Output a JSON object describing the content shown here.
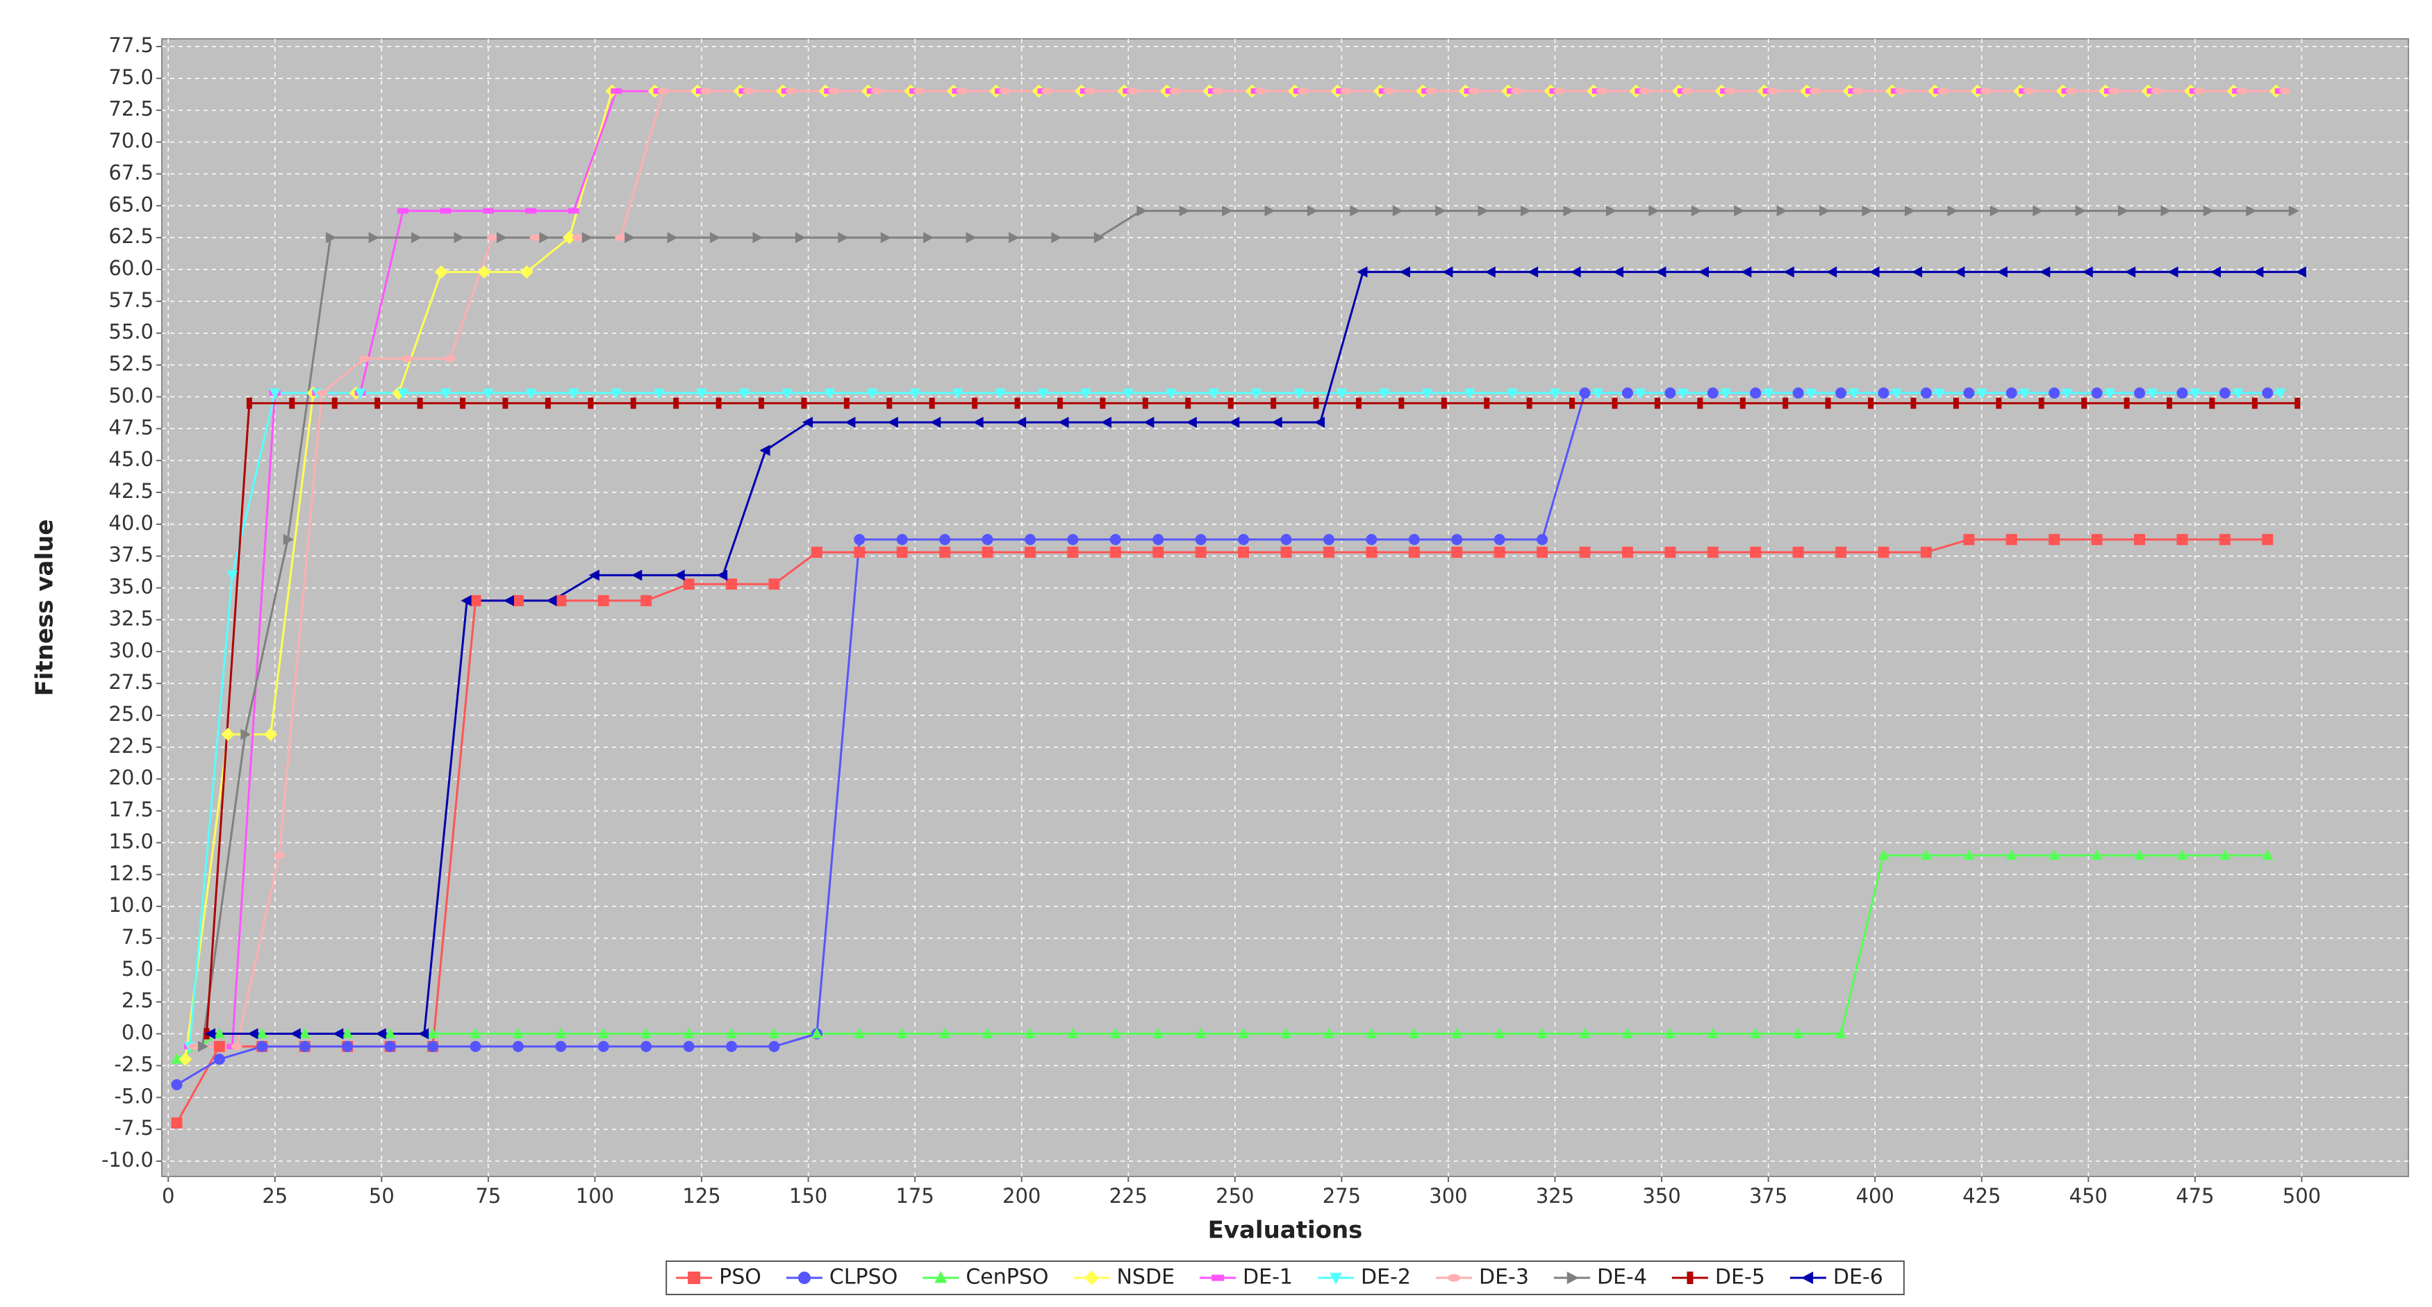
{
  "chart_data": {
    "type": "line",
    "x_label": "Evaluations",
    "y_label": "Fitness value",
    "xlim": [
      -1.5,
      525
    ],
    "ylim": [
      -11.2,
      78.1
    ],
    "xticks": [
      0,
      25,
      50,
      75,
      100,
      125,
      150,
      175,
      200,
      225,
      250,
      275,
      300,
      325,
      350,
      375,
      400,
      425,
      450,
      475,
      500
    ],
    "yticks": [
      {
        "value": -10,
        "label": "-10.0"
      },
      -7.5,
      {
        "value": -5,
        "label": "-5.0"
      },
      -2.5,
      {
        "value": 0,
        "label": "0.0"
      },
      2.5,
      {
        "value": 5,
        "label": "5.0"
      },
      7.5,
      {
        "value": 10,
        "label": "10.0"
      },
      12.5,
      {
        "value": 15,
        "label": "15.0"
      },
      17.5,
      {
        "value": 20,
        "label": "20.0"
      },
      22.5,
      {
        "value": 25,
        "label": "25.0"
      },
      27.5,
      {
        "value": 30,
        "label": "30.0"
      },
      32.5,
      {
        "value": 35,
        "label": "35.0"
      },
      37.5,
      {
        "value": 40,
        "label": "40.0"
      },
      42.5,
      {
        "value": 45,
        "label": "45.0"
      },
      47.5,
      {
        "value": 50,
        "label": "50.0"
      },
      52.5,
      {
        "value": 55,
        "label": "55.0"
      },
      57.5,
      {
        "value": 60,
        "label": "60.0"
      },
      62.5,
      {
        "value": 65,
        "label": "65.0"
      },
      67.5,
      {
        "value": 70,
        "label": "70.0"
      },
      72.5,
      {
        "value": 75,
        "label": "75.0"
      },
      77.5
    ],
    "grid": true,
    "legend": "bottom",
    "series": [
      {
        "name": "PSO",
        "color": "#ff5555",
        "x": [
          2,
          12,
          22,
          32,
          42,
          52,
          62,
          72,
          82,
          92,
          102,
          112,
          122,
          132,
          142,
          152,
          162,
          172,
          182,
          192,
          202,
          212,
          222,
          232,
          242,
          252,
          262,
          272,
          282,
          292,
          302,
          312,
          322,
          332,
          342,
          352,
          362,
          372,
          382,
          392,
          402,
          412,
          422,
          432,
          442,
          452,
          462,
          472,
          482,
          492
        ],
        "values": [
          -7,
          -1,
          -1,
          -1,
          -1,
          -1,
          -1,
          34,
          34,
          34,
          34,
          34,
          35.3,
          35.3,
          35.3,
          37.8,
          37.8,
          37.8,
          37.8,
          37.8,
          37.8,
          37.8,
          37.8,
          37.8,
          37.8,
          37.8,
          37.8,
          37.8,
          37.8,
          37.8,
          37.8,
          37.8,
          37.8,
          37.8,
          37.8,
          37.8,
          37.8,
          37.8,
          37.8,
          37.8,
          37.8,
          37.8,
          38.8,
          38.8,
          38.8,
          38.8,
          38.8,
          38.8,
          38.8,
          38.8
        ]
      },
      {
        "name": "CLPSO",
        "color": "#5555ff",
        "x": [
          2,
          12,
          22,
          32,
          42,
          52,
          62,
          72,
          82,
          92,
          102,
          112,
          122,
          132,
          142,
          152,
          162,
          172,
          182,
          192,
          202,
          212,
          222,
          232,
          242,
          252,
          262,
          272,
          282,
          292,
          302,
          312,
          322,
          332,
          342,
          352,
          362,
          372,
          382,
          392,
          402,
          412,
          422,
          432,
          442,
          452,
          462,
          472,
          482,
          492
        ],
        "values": [
          -4,
          -2,
          -1,
          -1,
          -1,
          -1,
          -1,
          -1,
          -1,
          -1,
          -1,
          -1,
          -1,
          -1,
          -1,
          0,
          38.8,
          38.8,
          38.8,
          38.8,
          38.8,
          38.8,
          38.8,
          38.8,
          38.8,
          38.8,
          38.8,
          38.8,
          38.8,
          38.8,
          38.8,
          38.8,
          38.8,
          50.3,
          50.3,
          50.3,
          50.3,
          50.3,
          50.3,
          50.3,
          50.3,
          50.3,
          50.3,
          50.3,
          50.3,
          50.3,
          50.3,
          50.3,
          50.3,
          50.3
        ]
      },
      {
        "name": "CenPSO",
        "color": "#55ff55",
        "x": [
          2,
          12,
          22,
          32,
          42,
          52,
          62,
          72,
          82,
          92,
          102,
          112,
          122,
          132,
          142,
          152,
          162,
          172,
          182,
          192,
          202,
          212,
          222,
          232,
          242,
          252,
          262,
          272,
          282,
          292,
          302,
          312,
          322,
          332,
          342,
          352,
          362,
          372,
          382,
          392,
          402,
          412,
          422,
          432,
          442,
          452,
          462,
          472,
          482,
          492
        ],
        "values": [
          -2,
          0,
          0,
          0,
          0,
          0,
          0,
          0,
          0,
          0,
          0,
          0,
          0,
          0,
          0,
          0,
          0,
          0,
          0,
          0,
          0,
          0,
          0,
          0,
          0,
          0,
          0,
          0,
          0,
          0,
          0,
          0,
          0,
          0,
          0,
          0,
          0,
          0,
          0,
          0,
          14,
          14,
          14,
          14,
          14,
          14,
          14,
          14,
          14,
          14
        ]
      },
      {
        "name": "NSDE",
        "color": "#ffff55",
        "x": [
          4,
          14,
          24,
          34,
          44,
          54,
          64,
          74,
          84,
          94,
          104,
          114,
          124,
          134,
          144,
          154,
          164,
          174,
          184,
          194,
          204,
          214,
          224,
          234,
          244,
          254,
          264,
          274,
          284,
          294,
          304,
          314,
          324,
          334,
          344,
          354,
          364,
          374,
          384,
          394,
          404,
          414,
          424,
          434,
          444,
          454,
          464,
          474,
          484,
          494
        ],
        "values": [
          -2,
          23.5,
          23.5,
          50.3,
          50.3,
          50.3,
          59.8,
          59.8,
          59.8,
          62.5,
          74,
          74,
          74,
          74,
          74,
          74,
          74,
          74,
          74,
          74,
          74,
          74,
          74,
          74,
          74,
          74,
          74,
          74,
          74,
          74,
          74,
          74,
          74,
          74,
          74,
          74,
          74,
          74,
          74,
          74,
          74,
          74,
          74,
          74,
          74,
          74,
          74,
          74,
          74,
          74
        ]
      },
      {
        "name": "DE-1",
        "color": "#ff55ff",
        "x": [
          5,
          15,
          25,
          35,
          45,
          55,
          65,
          75,
          85,
          95,
          105,
          115,
          125,
          135,
          145,
          155,
          165,
          175,
          185,
          195,
          205,
          215,
          225,
          235,
          245,
          255,
          265,
          275,
          285,
          295,
          305,
          315,
          325,
          335,
          345,
          355,
          365,
          375,
          385,
          395,
          405,
          415,
          425,
          435,
          445,
          455,
          465,
          475,
          485,
          495
        ],
        "values": [
          -1,
          -1,
          50.3,
          50.3,
          50.3,
          64.6,
          64.6,
          64.6,
          64.6,
          64.6,
          74,
          74,
          74,
          74,
          74,
          74,
          74,
          74,
          74,
          74,
          74,
          74,
          74,
          74,
          74,
          74,
          74,
          74,
          74,
          74,
          74,
          74,
          74,
          74,
          74,
          74,
          74,
          74,
          74,
          74,
          74,
          74,
          74,
          74,
          74,
          74,
          74,
          74,
          74,
          74
        ]
      },
      {
        "name": "DE-2",
        "color": "#55ffff",
        "x": [
          5,
          15,
          25,
          35,
          45,
          55,
          65,
          75,
          85,
          95,
          105,
          115,
          125,
          135,
          145,
          155,
          165,
          175,
          185,
          195,
          205,
          215,
          225,
          235,
          245,
          255,
          265,
          275,
          285,
          295,
          305,
          315,
          325,
          335,
          345,
          355,
          365,
          375,
          385,
          395,
          405,
          415,
          425,
          435,
          445,
          455,
          465,
          475,
          485,
          495
        ],
        "values": [
          -1,
          36,
          50.3,
          50.3,
          50.3,
          50.3,
          50.3,
          50.3,
          50.3,
          50.3,
          50.3,
          50.3,
          50.3,
          50.3,
          50.3,
          50.3,
          50.3,
          50.3,
          50.3,
          50.3,
          50.3,
          50.3,
          50.3,
          50.3,
          50.3,
          50.3,
          50.3,
          50.3,
          50.3,
          50.3,
          50.3,
          50.3,
          50.3,
          50.3,
          50.3,
          50.3,
          50.3,
          50.3,
          50.3,
          50.3,
          50.3,
          50.3,
          50.3,
          50.3,
          50.3,
          50.3,
          50.3,
          50.3,
          50.3,
          50.3
        ]
      },
      {
        "name": "DE-3",
        "color": "#ffafaf",
        "x": [
          6,
          16,
          26,
          36,
          46,
          56,
          66,
          76,
          86,
          96,
          106,
          116,
          126,
          136,
          146,
          156,
          166,
          176,
          186,
          196,
          206,
          216,
          226,
          236,
          246,
          256,
          266,
          276,
          286,
          296,
          306,
          316,
          326,
          336,
          346,
          356,
          366,
          376,
          386,
          396,
          406,
          416,
          426,
          436,
          446,
          456,
          466,
          476,
          486,
          496
        ],
        "values": [
          -1,
          -1,
          14,
          50.3,
          53,
          53,
          53,
          62.5,
          62.5,
          62.5,
          62.5,
          74,
          74,
          74,
          74,
          74,
          74,
          74,
          74,
          74,
          74,
          74,
          74,
          74,
          74,
          74,
          74,
          74,
          74,
          74,
          74,
          74,
          74,
          74,
          74,
          74,
          74,
          74,
          74,
          74,
          74,
          74,
          74,
          74,
          74,
          74,
          74,
          74,
          74,
          74
        ]
      },
      {
        "name": "DE-4",
        "color": "#808080",
        "x": [
          8,
          18,
          28,
          38,
          48,
          58,
          68,
          78,
          88,
          98,
          108,
          118,
          128,
          138,
          148,
          158,
          168,
          178,
          188,
          198,
          208,
          218,
          228,
          238,
          248,
          258,
          268,
          278,
          288,
          298,
          308,
          318,
          328,
          338,
          348,
          358,
          368,
          378,
          388,
          398,
          408,
          418,
          428,
          438,
          448,
          458,
          468,
          478,
          488,
          498
        ],
        "values": [
          -1,
          23.5,
          38.8,
          62.5,
          62.5,
          62.5,
          62.5,
          62.5,
          62.5,
          62.5,
          62.5,
          62.5,
          62.5,
          62.5,
          62.5,
          62.5,
          62.5,
          62.5,
          62.5,
          62.5,
          62.5,
          62.5,
          64.6,
          64.6,
          64.6,
          64.6,
          64.6,
          64.6,
          64.6,
          64.6,
          64.6,
          64.6,
          64.6,
          64.6,
          64.6,
          64.6,
          64.6,
          64.6,
          64.6,
          64.6,
          64.6,
          64.6,
          64.6,
          64.6,
          64.6,
          64.6,
          64.6,
          64.6,
          64.6,
          64.6
        ]
      },
      {
        "name": "DE-5",
        "color": "#b00000",
        "x": [
          9,
          19,
          29,
          39,
          49,
          59,
          69,
          79,
          89,
          99,
          109,
          119,
          129,
          139,
          149,
          159,
          169,
          179,
          189,
          199,
          209,
          219,
          229,
          239,
          249,
          259,
          269,
          279,
          289,
          299,
          309,
          319,
          329,
          339,
          349,
          359,
          369,
          379,
          389,
          399,
          409,
          419,
          429,
          439,
          449,
          459,
          469,
          479,
          489,
          499
        ],
        "values": [
          0,
          49.5,
          49.5,
          49.5,
          49.5,
          49.5,
          49.5,
          49.5,
          49.5,
          49.5,
          49.5,
          49.5,
          49.5,
          49.5,
          49.5,
          49.5,
          49.5,
          49.5,
          49.5,
          49.5,
          49.5,
          49.5,
          49.5,
          49.5,
          49.5,
          49.5,
          49.5,
          49.5,
          49.5,
          49.5,
          49.5,
          49.5,
          49.5,
          49.5,
          49.5,
          49.5,
          49.5,
          49.5,
          49.5,
          49.5,
          49.5,
          49.5,
          49.5,
          49.5,
          49.5,
          49.5,
          49.5,
          49.5,
          49.5,
          49.5
        ]
      },
      {
        "name": "DE-6",
        "color": "#0000b0",
        "x": [
          10,
          20,
          30,
          40,
          50,
          60,
          70,
          80,
          90,
          100,
          110,
          120,
          130,
          140,
          150,
          160,
          170,
          180,
          190,
          200,
          210,
          220,
          230,
          240,
          250,
          260,
          270,
          280,
          290,
          300,
          310,
          320,
          330,
          340,
          350,
          360,
          370,
          380,
          390,
          400,
          410,
          420,
          430,
          440,
          450,
          460,
          470,
          480,
          490,
          500
        ],
        "values": [
          0,
          0,
          0,
          0,
          0,
          0,
          34,
          34,
          34,
          36,
          36,
          36,
          36,
          45.8,
          48,
          48,
          48,
          48,
          48,
          48,
          48,
          48,
          48,
          48,
          48,
          48,
          48,
          59.8,
          59.8,
          59.8,
          59.8,
          59.8,
          59.8,
          59.8,
          59.8,
          59.8,
          59.8,
          59.8,
          59.8,
          59.8,
          59.8,
          59.8,
          59.8,
          59.8,
          59.8,
          59.8,
          59.8,
          59.8,
          59.8,
          59.8
        ]
      }
    ]
  }
}
